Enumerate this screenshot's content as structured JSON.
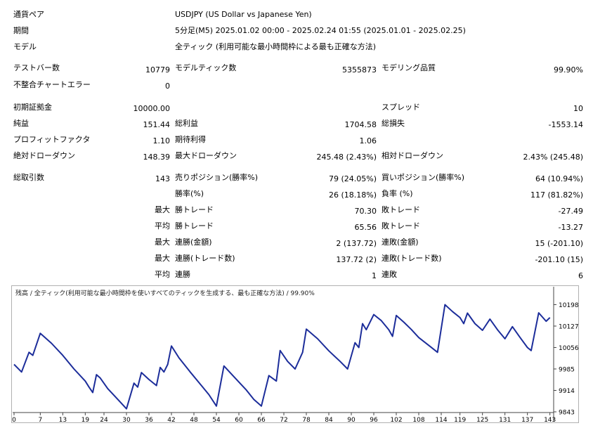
{
  "header": {
    "symbol_label": "通貨ペア",
    "symbol_value": "USDJPY (US Dollar vs Japanese Yen)",
    "period_label": "期間",
    "period_value": "5分足(M5) 2025.01.02 00:00 - 2025.02.24 01:55 (2025.01.01 - 2025.02.25)",
    "model_label": "モデル",
    "model_value": "全ティック (利用可能な最小時間枠による最も正確な方法)"
  },
  "stats": {
    "bars_label": "テストバー数",
    "bars_value": "10779",
    "ticks_label": "モデルティック数",
    "ticks_value": "5355873",
    "quality_label": "モデリング品質",
    "quality_value": "99.90%",
    "mismatch_label": "不整合チャートエラー",
    "mismatch_value": "0",
    "deposit_label": "初期証拠金",
    "deposit_value": "10000.00",
    "spread_label": "スプレッド",
    "spread_value": "10",
    "net_label": "純益",
    "net_value": "151.44",
    "gross_profit_label": "総利益",
    "gross_profit_value": "1704.58",
    "gross_loss_label": "総損失",
    "gross_loss_value": "-1553.14",
    "pf_label": "プロフィットファクタ",
    "pf_value": "1.10",
    "expected_label": "期待利得",
    "expected_value": "1.06",
    "abs_dd_label": "絶対ドローダウン",
    "abs_dd_value": "148.39",
    "max_dd_label": "最大ドローダウン",
    "max_dd_value": "245.48 (2.43%)",
    "rel_dd_label": "相対ドローダウン",
    "rel_dd_value": "2.43% (245.48)",
    "trades_label": "総取引数",
    "trades_value": "143",
    "short_label": "売りポジション(勝率%)",
    "short_value": "79 (24.05%)",
    "long_label": "買いポジション(勝率%)",
    "long_value": "64 (10.94%)",
    "win_label": "勝率(%)",
    "win_value": "26 (18.18%)",
    "loss_label": "負率 (%)",
    "loss_value": "117 (81.82%)",
    "max1": "最大",
    "max_win_label": "勝トレード",
    "max_win_value": "70.30",
    "max_loss_label": "敗トレード",
    "max_loss_value": "-27.49",
    "avg1": "平均",
    "avg_win_label": "勝トレード",
    "avg_win_value": "65.56",
    "avg_loss_label": "敗トレード",
    "avg_loss_value": "-13.27",
    "max2": "最大",
    "cons_win_amt_label": "連勝(金額)",
    "cons_win_amt_value": "2 (137.72)",
    "cons_loss_amt_label": "連敗(金額)",
    "cons_loss_amt_value": "15 (-201.10)",
    "max3": "最大",
    "cons_win_cnt_label": "連勝(トレード数)",
    "cons_win_cnt_value": "137.72 (2)",
    "cons_loss_cnt_label": "連敗(トレード数)",
    "cons_loss_cnt_value": "-201.10 (15)",
    "avg2": "平均",
    "avg_cons_win_label": "連勝",
    "avg_cons_win_value": "1",
    "avg_cons_loss_label": "連敗",
    "avg_cons_loss_value": "6"
  },
  "chart_data": {
    "type": "line",
    "title": "残高 / 全ティック(利用可能な最小時間枠を使いすべてのティックを生成する、最も正確な方法) / 99.90%",
    "x_ticks": [
      0,
      7,
      13,
      19,
      24,
      30,
      36,
      42,
      48,
      54,
      60,
      66,
      72,
      78,
      84,
      90,
      96,
      102,
      108,
      114,
      119,
      125,
      131,
      137,
      143
    ],
    "y_ticks": [
      10198,
      10127,
      10056,
      9985,
      9914,
      9843
    ],
    "xlim": [
      0,
      144
    ],
    "ylim": [
      9843,
      10220
    ],
    "grid": false,
    "series": [
      {
        "color": "#1c2d9a",
        "points": [
          [
            0,
            10000
          ],
          [
            2,
            9975
          ],
          [
            4,
            10040
          ],
          [
            5,
            10030
          ],
          [
            7,
            10103
          ],
          [
            10,
            10070
          ],
          [
            13,
            10030
          ],
          [
            16,
            9985
          ],
          [
            19,
            9945
          ],
          [
            20,
            9925
          ],
          [
            21,
            9907
          ],
          [
            22,
            9966
          ],
          [
            23,
            9955
          ],
          [
            25,
            9920
          ],
          [
            28,
            9880
          ],
          [
            30,
            9853
          ],
          [
            32,
            9938
          ],
          [
            33,
            9925
          ],
          [
            34,
            9973
          ],
          [
            36,
            9950
          ],
          [
            38,
            9930
          ],
          [
            39,
            9990
          ],
          [
            40,
            9975
          ],
          [
            41,
            10000
          ],
          [
            42,
            10061
          ],
          [
            44,
            10022
          ],
          [
            47,
            9975
          ],
          [
            50,
            9930
          ],
          [
            52,
            9900
          ],
          [
            54,
            9862
          ],
          [
            56,
            9995
          ],
          [
            59,
            9955
          ],
          [
            62,
            9915
          ],
          [
            64,
            9884
          ],
          [
            66,
            9862
          ],
          [
            68,
            9963
          ],
          [
            70,
            9945
          ],
          [
            71,
            10046
          ],
          [
            73,
            10010
          ],
          [
            75,
            9985
          ],
          [
            77,
            10040
          ],
          [
            78,
            10117
          ],
          [
            81,
            10085
          ],
          [
            84,
            10045
          ],
          [
            87,
            10010
          ],
          [
            89,
            9985
          ],
          [
            91,
            10072
          ],
          [
            92,
            10056
          ],
          [
            93,
            10135
          ],
          [
            94,
            10115
          ],
          [
            96,
            10165
          ],
          [
            98,
            10145
          ],
          [
            100,
            10115
          ],
          [
            101,
            10093
          ],
          [
            102,
            10162
          ],
          [
            104,
            10140
          ],
          [
            106,
            10116
          ],
          [
            108,
            10089
          ],
          [
            111,
            10060
          ],
          [
            113,
            10040
          ],
          [
            115,
            10198
          ],
          [
            117,
            10175
          ],
          [
            119,
            10155
          ],
          [
            120,
            10135
          ],
          [
            121,
            10170
          ],
          [
            123,
            10135
          ],
          [
            125,
            10113
          ],
          [
            127,
            10150
          ],
          [
            129,
            10115
          ],
          [
            131,
            10085
          ],
          [
            133,
            10125
          ],
          [
            135,
            10090
          ],
          [
            137,
            10056
          ],
          [
            138,
            10046
          ],
          [
            140,
            10171
          ],
          [
            142,
            10143
          ],
          [
            143,
            10155
          ]
        ]
      }
    ]
  }
}
